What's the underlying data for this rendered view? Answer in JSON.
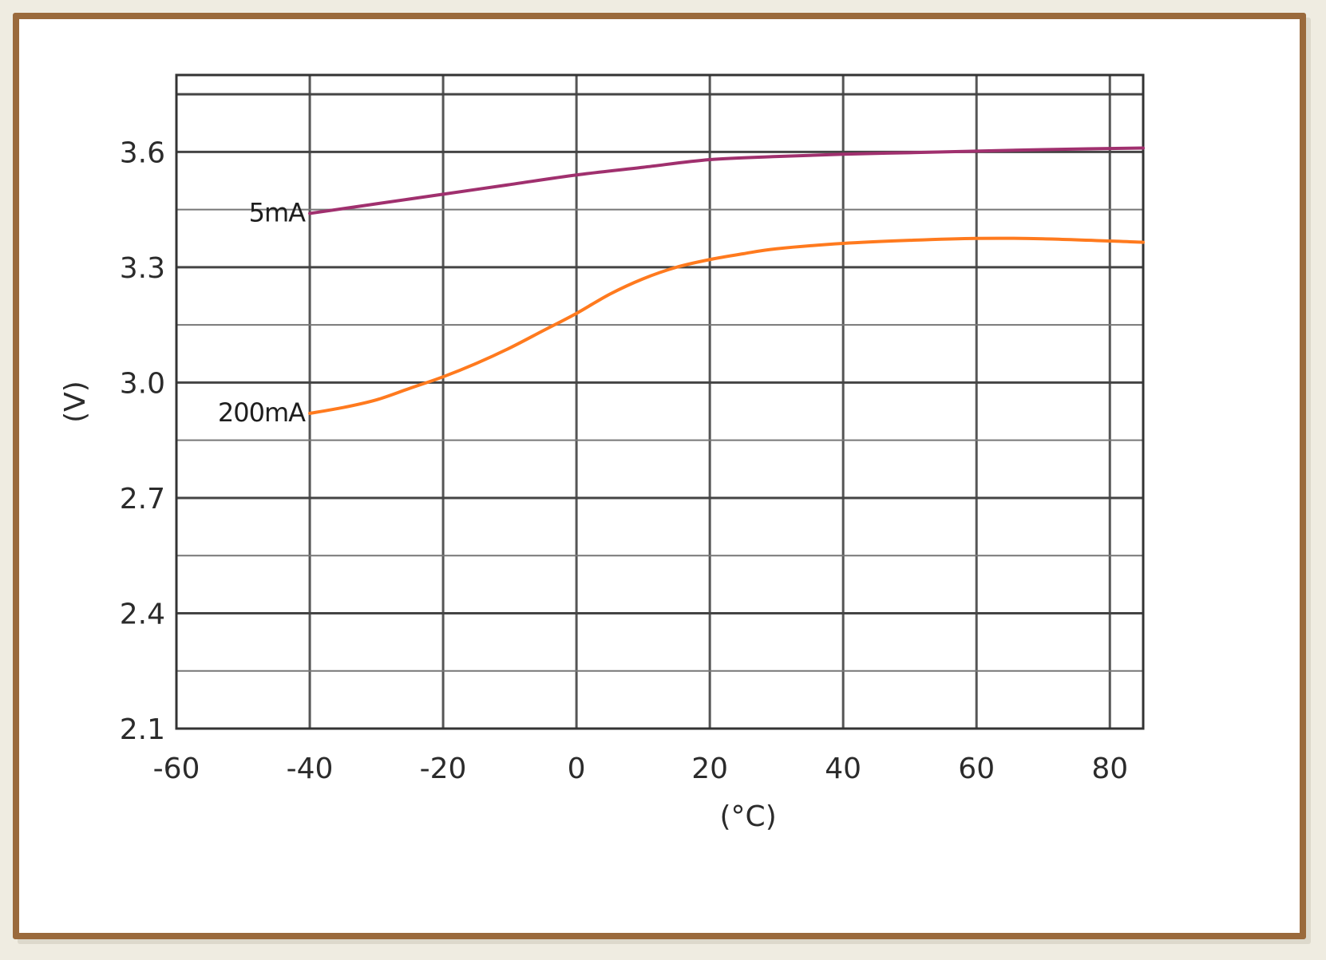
{
  "chart_data": {
    "type": "line",
    "xlabel": "(°C)",
    "ylabel": "(V)",
    "xlim": [
      -60,
      85
    ],
    "ylim": [
      2.1,
      3.8
    ],
    "x_ticks": [
      -60,
      -40,
      -20,
      0,
      20,
      40,
      60,
      80
    ],
    "x_tick_labels": [
      "-60",
      "-40",
      "-20",
      "0",
      "20",
      "40",
      "60",
      "80"
    ],
    "y_ticks": [
      2.1,
      2.4,
      2.7,
      3.0,
      3.3,
      3.6
    ],
    "y_tick_labels": [
      "2.1",
      "2.4",
      "2.7",
      "3.0",
      "3.3",
      "3.6"
    ],
    "grid": true,
    "series": [
      {
        "name": "5mA",
        "color": "#a0306e",
        "x": [
          -40,
          -30,
          -20,
          -10,
          0,
          10,
          20,
          30,
          40,
          50,
          60,
          70,
          85
        ],
        "y": [
          3.44,
          3.465,
          3.49,
          3.515,
          3.54,
          3.56,
          3.58,
          3.588,
          3.594,
          3.598,
          3.602,
          3.606,
          3.61
        ]
      },
      {
        "name": "200mA",
        "color": "#ff7a1e",
        "x": [
          -40,
          -35,
          -30,
          -25,
          -20,
          -15,
          -10,
          -5,
          0,
          5,
          10,
          15,
          20,
          25,
          30,
          40,
          50,
          60,
          70,
          85
        ],
        "y": [
          2.92,
          2.935,
          2.955,
          2.985,
          3.015,
          3.05,
          3.09,
          3.135,
          3.18,
          3.23,
          3.27,
          3.3,
          3.32,
          3.335,
          3.348,
          3.362,
          3.37,
          3.375,
          3.374,
          3.365
        ]
      }
    ]
  }
}
